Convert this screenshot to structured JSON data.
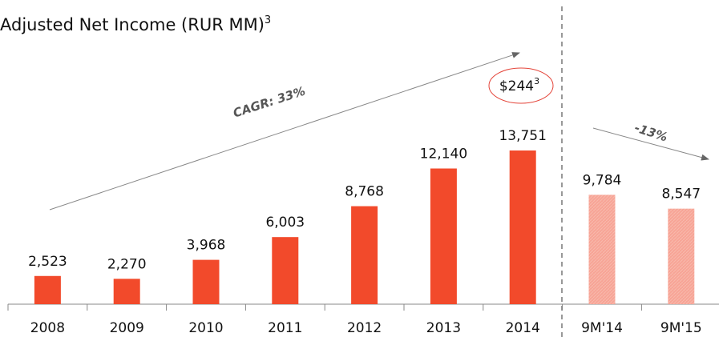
{
  "chart_data": {
    "type": "bar",
    "title": "Adjusted Net Income (RUR MM)",
    "title_note": "3",
    "categories": [
      "2008",
      "2009",
      "2010",
      "2011",
      "2012",
      "2013",
      "2014",
      "9M'14",
      "9M'15"
    ],
    "values": [
      2523,
      2270,
      3968,
      6003,
      8768,
      12140,
      13751,
      9784,
      8547
    ],
    "value_labels": [
      "2,523",
      "2,270",
      "3,968",
      "6,003",
      "8,768",
      "12,140",
      "13,751",
      "9,784",
      "8,547"
    ],
    "colors": [
      "#f24a2b",
      "#f24a2b",
      "#f24a2b",
      "#f24a2b",
      "#f24a2b",
      "#f24a2b",
      "#f24a2b",
      "#f7a496",
      "#f7a496"
    ],
    "annotations": {
      "cagr": "CAGR: 33%",
      "change": "-13%",
      "usd": "$244",
      "usd_note": "3"
    }
  }
}
